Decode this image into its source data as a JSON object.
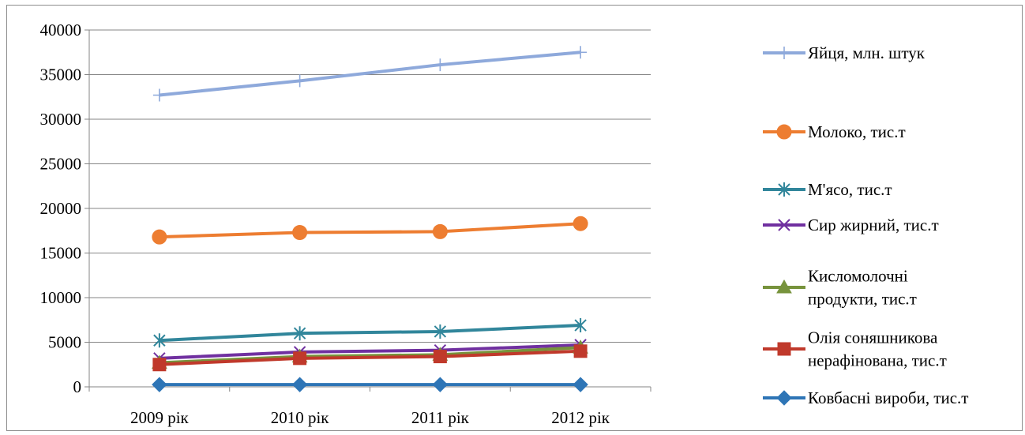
{
  "chart_data": {
    "type": "line",
    "title": "",
    "xlabel": "",
    "ylabel": "",
    "categories": [
      "2009 рік",
      "2010 рік",
      "2011 рік",
      "2012 рік"
    ],
    "ylim": [
      0,
      40000
    ],
    "yticks": [
      "0",
      "5000",
      "10000",
      "15000",
      "20000",
      "25000",
      "30000",
      "35000",
      "40000"
    ],
    "grid": true,
    "legend_position": "right",
    "series": [
      {
        "name": "Яйця, млн. штук",
        "color": "#8EA9DB",
        "marker": "plus",
        "values": [
          32700,
          34300,
          36100,
          37500
        ]
      },
      {
        "name": "Молоко, тис.т",
        "color": "#ED7D31",
        "marker": "circle",
        "values": [
          16800,
          17300,
          17400,
          18300
        ]
      },
      {
        "name": "М'ясо, тис.т",
        "color": "#31869B",
        "marker": "asterisk",
        "values": [
          5200,
          6000,
          6200,
          6900
        ]
      },
      {
        "name": "Сир жирний, тис.т",
        "color": "#7030A0",
        "marker": "x",
        "values": [
          3200,
          3900,
          4100,
          4700
        ]
      },
      {
        "name": "Кисломолочні продукти, тис.т",
        "color": "#77933C",
        "marker": "triangle",
        "values": [
          2700,
          3400,
          3600,
          4400
        ]
      },
      {
        "name": "Олія соняшникова нерафінована, тис.т",
        "color": "#C0392B",
        "marker": "square",
        "values": [
          2500,
          3200,
          3400,
          4000
        ]
      },
      {
        "name": "Ковбасні вироби, тис.т",
        "color": "#2E75B6",
        "marker": "diamond",
        "values": [
          250,
          250,
          250,
          250
        ]
      }
    ],
    "legend_lines": [
      [
        "Яйця, млн. штук"
      ],
      [
        "Молоко, тис.т"
      ],
      [
        "М'ясо, тис.т"
      ],
      [
        "Сир жирний, тис.т"
      ],
      [
        "Кисломолочні",
        "продукти, тис.т"
      ],
      [
        "Олія соняшникова",
        "нерафінована, тис.т"
      ],
      [
        "Ковбасні вироби, тис.т"
      ]
    ]
  }
}
